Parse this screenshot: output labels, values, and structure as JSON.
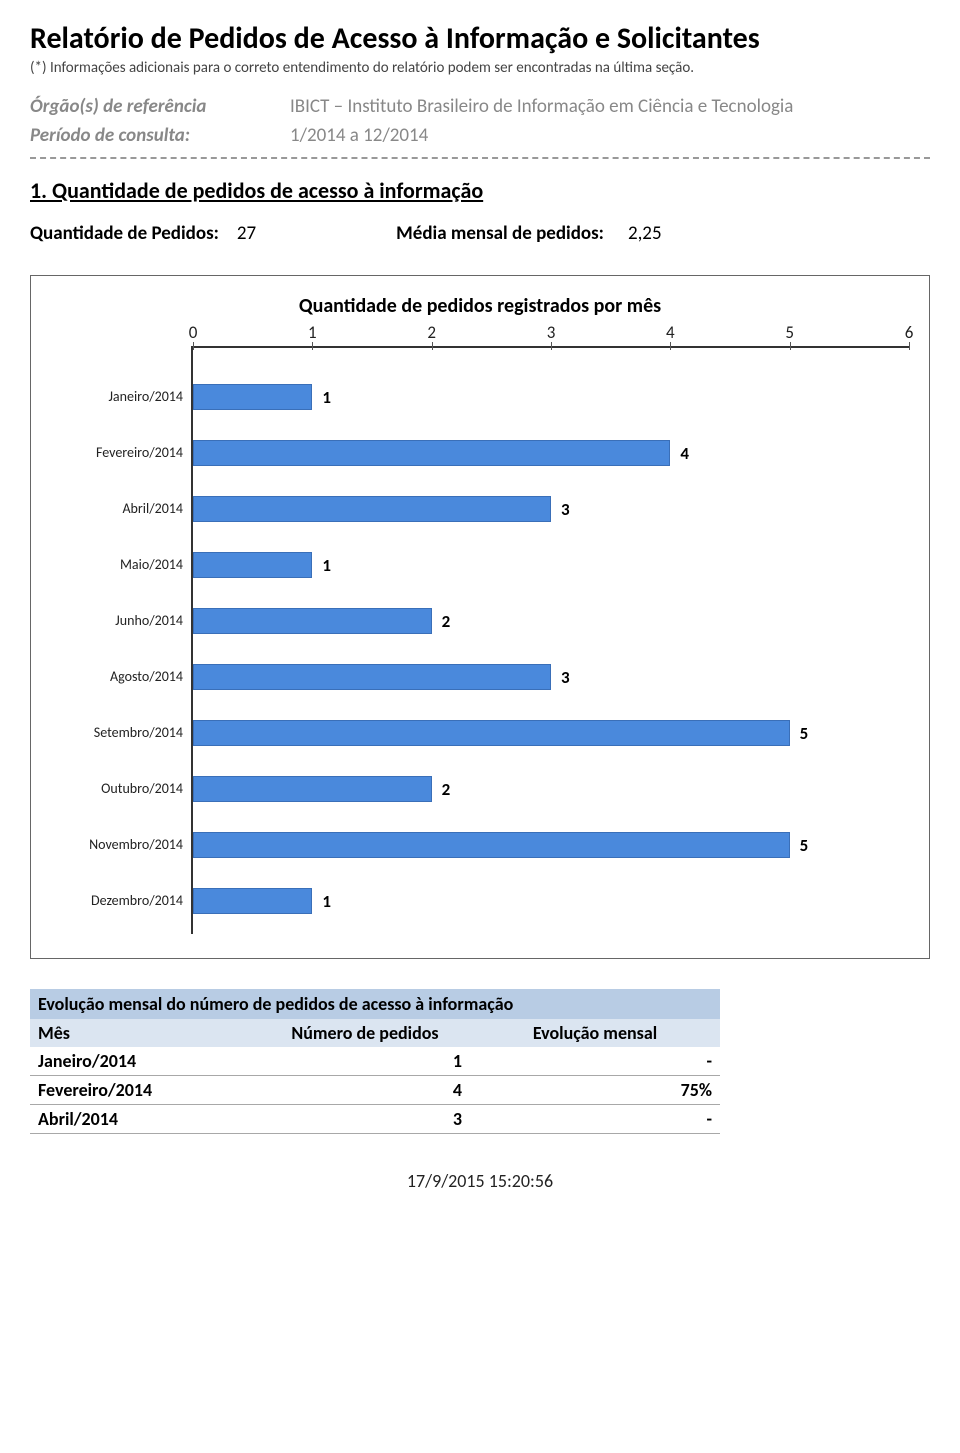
{
  "header": {
    "title": "Relatório de Pedidos de Acesso à Informação e Solicitantes",
    "subtitle": "(*) Informações adicionais para o correto entendimento do relatório podem ser encontradas na última seção.",
    "orgao_label": "Órgão(s) de referência",
    "orgao_value": "IBICT – Instituto Brasileiro de Informação em Ciência e Tecnologia",
    "periodo_label": "Período de consulta:",
    "periodo_value": "1/2014 a 12/2014"
  },
  "section1": {
    "heading": "1. Quantidade de pedidos de acesso à informação",
    "qtd_label": "Quantidade de Pedidos:",
    "qtd_value": "27",
    "media_label": "Média mensal de pedidos:",
    "media_value": "2,25"
  },
  "chart": {
    "type": "bar-horizontal",
    "title": "Quantidade de pedidos registrados por mês",
    "xmin": 0,
    "xmax": 6,
    "xtick_step": 1,
    "xticks": [
      "0",
      "1",
      "2",
      "3",
      "4",
      "5",
      "6"
    ],
    "bar_color": "#4a89dc",
    "bar_border_color": "#3a6fb8",
    "axis_color": "#333333",
    "label_fontsize": 14,
    "value_fontsize": 17,
    "title_fontsize": 20,
    "background_color": "#ffffff",
    "categories": [
      "Janeiro/2014",
      "Fevereiro/2014",
      "Abril/2014",
      "Maio/2014",
      "Junho/2014",
      "Agosto/2014",
      "Setembro/2014",
      "Outubro/2014",
      "Novembro/2014",
      "Dezembro/2014"
    ],
    "values": [
      1,
      4,
      3,
      1,
      2,
      3,
      5,
      2,
      5,
      1
    ]
  },
  "table": {
    "title": "Evolução mensal do número de pedidos de acesso à informação",
    "columns": [
      "Mês",
      "Número de pedidos",
      "Evolução mensal"
    ],
    "header_bg": "#b8cce4",
    "subheader_bg": "#dbe5f1",
    "row_border_color": "#a8a8a8",
    "rows": [
      {
        "mes": "Janeiro/2014",
        "num": "1",
        "evo": "-"
      },
      {
        "mes": "Fevereiro/2014",
        "num": "4",
        "evo": "75%"
      },
      {
        "mes": "Abril/2014",
        "num": "3",
        "evo": "-"
      }
    ]
  },
  "footer": {
    "timestamp": "17/9/2015 15:20:56"
  }
}
